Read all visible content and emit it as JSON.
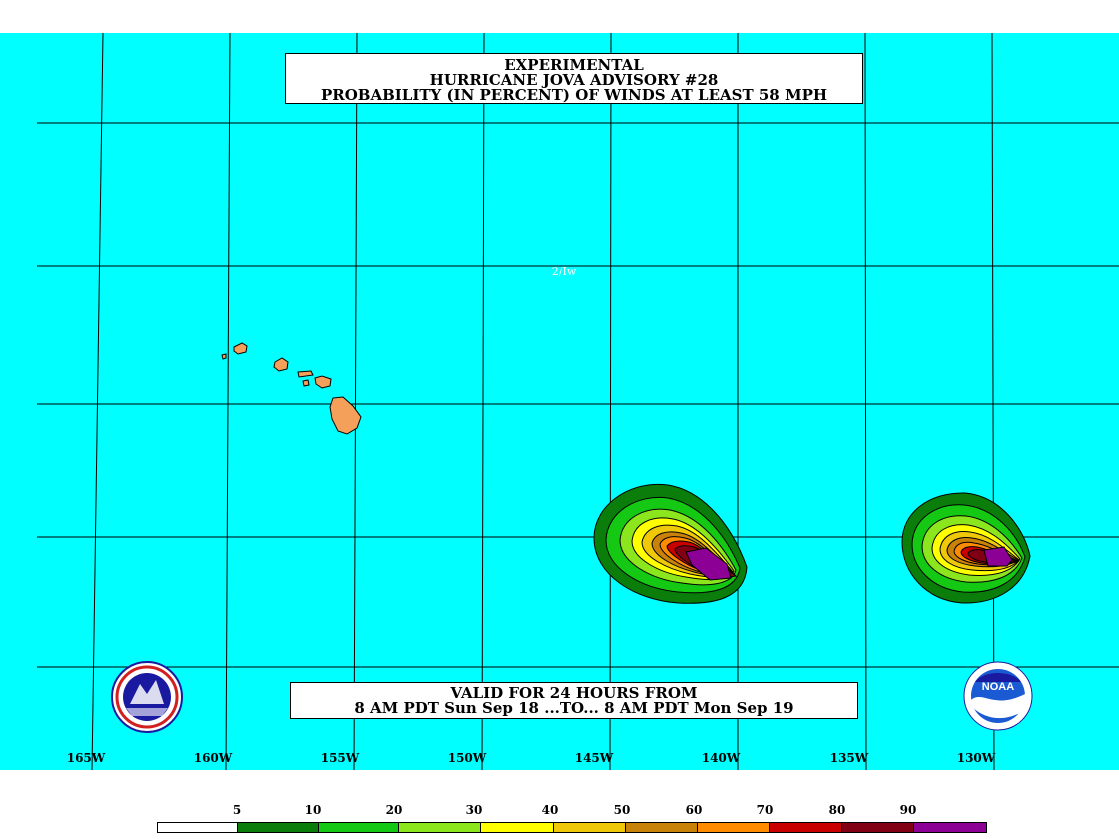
{
  "title": {
    "line1": "EXPERIMENTAL",
    "line2": "HURRICANE JOVA ADVISORY #28",
    "line3": "PROBABILITY (IN PERCENT) OF WINDS AT LEAST 58 MPH"
  },
  "valid": {
    "line1": "VALID FOR 24 HOURS FROM",
    "line2": "8 AM PDT Sun Sep 18 ...TO... 8 AM PDT Mon Sep 19"
  },
  "grid_tag": "2/Iw",
  "longitude_labels": [
    "165W",
    "160W",
    "155W",
    "150W",
    "145W",
    "140W",
    "135W",
    "130W"
  ],
  "legend": {
    "labels": [
      "5",
      "10",
      "20",
      "30",
      "40",
      "50",
      "60",
      "70",
      "80",
      "90"
    ],
    "colors": [
      "#ffffff",
      "#0a7d0a",
      "#14c814",
      "#8ce61e",
      "#ffff00",
      "#f0c80a",
      "#c8820a",
      "#ff8c00",
      "#c80000",
      "#820014",
      "#8c0096"
    ]
  },
  "colors": {
    "ocean": "#00ffff",
    "land": "#f5a05a"
  },
  "logos": {
    "left": "nws-logo",
    "right": "noaa-logo",
    "noaa_text": "NOAA"
  }
}
